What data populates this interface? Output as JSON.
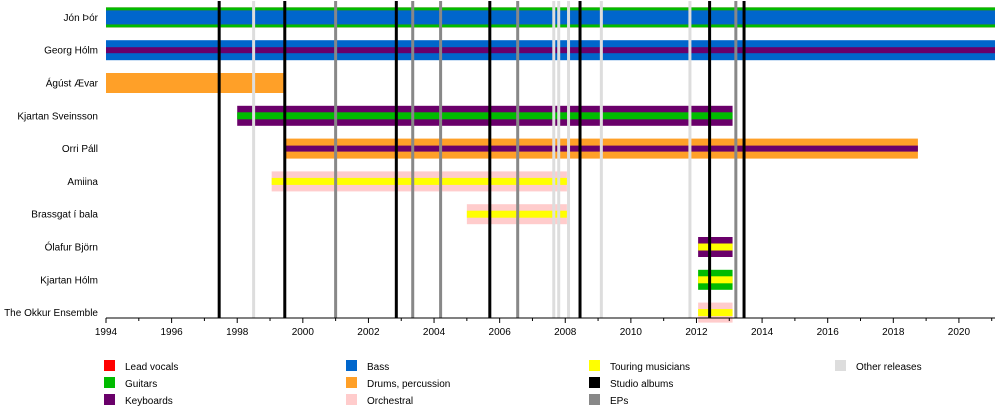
{
  "chart_data": {
    "type": "timeline",
    "x_range": [
      1994,
      2021.1
    ],
    "x_ticks": [
      "1994",
      "1996",
      "1998",
      "2000",
      "2002",
      "2004",
      "2006",
      "2008",
      "2010",
      "2012",
      "2014",
      "2016",
      "2018",
      "2020"
    ],
    "members": [
      {
        "name": "Jón Þór",
        "bars": [
          {
            "start": 1994,
            "end": 2021.1,
            "roles": [
              "Lead vocals",
              "Guitars",
              "Bass"
            ]
          }
        ]
      },
      {
        "name": "Georg Hólm",
        "bars": [
          {
            "start": 1994,
            "end": 2021.1,
            "roles": [
              "Bass",
              "Keyboards"
            ]
          }
        ]
      },
      {
        "name": "Ágúst Ævar",
        "bars": [
          {
            "start": 1994,
            "end": 1999.45,
            "roles": [
              "Drums, percussion"
            ]
          }
        ]
      },
      {
        "name": "Kjartan Sveinsson",
        "bars": [
          {
            "start": 1998,
            "end": 2013.1,
            "roles": [
              "Keyboards",
              "Guitars"
            ]
          }
        ]
      },
      {
        "name": "Orri Páll",
        "bars": [
          {
            "start": 1999.45,
            "end": 2018.75,
            "roles": [
              "Drums, percussion",
              "Keyboards"
            ]
          }
        ]
      },
      {
        "name": "Amiina",
        "bars": [
          {
            "start": 1999.05,
            "end": 2008.05,
            "roles": [
              "Orchestral",
              "Touring musicians"
            ]
          }
        ]
      },
      {
        "name": "Brassgat í bala",
        "bars": [
          {
            "start": 2005,
            "end": 2008.05,
            "roles": [
              "Orchestral",
              "Touring musicians"
            ]
          }
        ]
      },
      {
        "name": "Ólafur Björn",
        "bars": [
          {
            "start": 2012.05,
            "end": 2013.1,
            "roles": [
              "Keyboards",
              "Touring musicians"
            ]
          }
        ]
      },
      {
        "name": "Kjartan Hólm",
        "bars": [
          {
            "start": 2012.05,
            "end": 2013.1,
            "roles": [
              "Guitars",
              "Touring musicians"
            ]
          }
        ]
      },
      {
        "name": "The Okkur Ensemble",
        "bars": [
          {
            "start": 2012.05,
            "end": 2013.1,
            "roles": [
              "Orchestral",
              "Touring musicians"
            ]
          }
        ]
      }
    ],
    "studio_albums": [
      1997.45,
      1999.45,
      2002.85,
      2005.7,
      2008.45,
      2012.4,
      2013.45
    ],
    "eps": [
      2001.0,
      2003.35,
      2004.2,
      2006.55,
      2013.2
    ],
    "other_releases": [
      1998.5,
      2007.65,
      2007.8,
      2008.1,
      2009.1,
      2011.8
    ],
    "legend": [
      {
        "label": "Lead vocals",
        "color": "#ff0000"
      },
      {
        "label": "Guitars",
        "color": "#00bb00"
      },
      {
        "label": "Keyboards",
        "color": "#6a006a"
      },
      {
        "label": "Bass",
        "color": "#0066cc"
      },
      {
        "label": "Drums, percussion",
        "color": "#ffa028"
      },
      {
        "label": "Orchestral",
        "color": "#ffcccc"
      },
      {
        "label": "Touring musicians",
        "color": "#ffff00"
      },
      {
        "label": "Studio albums",
        "color": "#000000"
      },
      {
        "label": "EPs",
        "color": "#888888"
      },
      {
        "label": "Other releases",
        "color": "#dddddd"
      }
    ]
  }
}
